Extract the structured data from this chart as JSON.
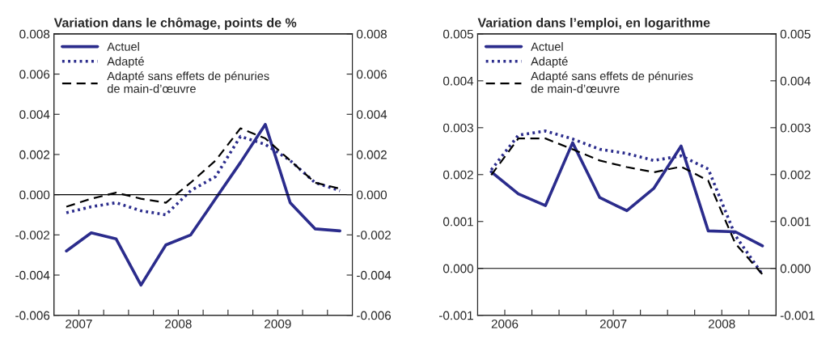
{
  "chart_data": [
    {
      "type": "line",
      "title": "Variation dans le chômage, points de %",
      "x": [
        2006.875,
        2007.125,
        2007.375,
        2007.625,
        2007.875,
        2008.125,
        2008.375,
        2008.625,
        2008.875,
        2009.125,
        2009.375,
        2009.625
      ],
      "series": [
        {
          "name": "Actuel",
          "color": "#2b2c8c",
          "line_style": "solid",
          "values": [
            -0.0028,
            -0.0019,
            -0.0022,
            -0.0045,
            -0.0025,
            -0.002,
            -0.0002,
            0.0016,
            0.0035,
            -0.0004,
            -0.0017,
            -0.0018
          ]
        },
        {
          "name": "Adapté",
          "color": "#2b2c8c",
          "line_style": "dotted",
          "values": [
            -0.0009,
            -0.0006,
            -0.0004,
            -0.0008,
            -0.001,
            0.0002,
            0.0009,
            0.0029,
            0.0025,
            0.0017,
            0.0006,
            0.0002
          ]
        },
        {
          "name": "Adapté sans effets de pénuries\nde main-d’œuvre",
          "color": "#000000",
          "line_style": "dashed",
          "values": [
            -0.0006,
            -0.0002,
            0.0001,
            -0.0002,
            -0.0004,
            0.0006,
            0.0017,
            0.0033,
            0.0028,
            0.0017,
            0.0006,
            0.0003
          ]
        }
      ],
      "xlim": [
        2006.75,
        2009.75
      ],
      "xticks": [
        {
          "value": 2007,
          "label": "2007"
        },
        {
          "value": 2007.25,
          "label": null
        },
        {
          "value": 2007.5,
          "label": null
        },
        {
          "value": 2007.75,
          "label": null
        },
        {
          "value": 2008,
          "label": "2008"
        },
        {
          "value": 2008.25,
          "label": null
        },
        {
          "value": 2008.5,
          "label": null
        },
        {
          "value": 2008.75,
          "label": null
        },
        {
          "value": 2009,
          "label": "2009"
        },
        {
          "value": 2009.25,
          "label": null
        },
        {
          "value": 2009.5,
          "label": null
        }
      ],
      "ylim": [
        -0.006,
        0.008
      ],
      "yticks": [
        {
          "value": -0.006,
          "label": "-0.006"
        },
        {
          "value": -0.004,
          "label": "-0.004"
        },
        {
          "value": -0.002,
          "label": "-0.002"
        },
        {
          "value": 0,
          "label": "0.000"
        },
        {
          "value": 0.002,
          "label": "0.002"
        },
        {
          "value": 0.004,
          "label": "0.004"
        },
        {
          "value": 0.006,
          "label": "0.006"
        },
        {
          "value": 0.008,
          "label": "0.008"
        }
      ],
      "y2lim": [
        -0.006,
        0.008
      ],
      "y2ticks": [
        {
          "value": -0.006,
          "label": "-0.006"
        },
        {
          "value": -0.004,
          "label": "-0.004"
        },
        {
          "value": -0.002,
          "label": "-0.002"
        },
        {
          "value": 0,
          "label": "0.000"
        },
        {
          "value": 0.002,
          "label": "0.002"
        },
        {
          "value": 0.004,
          "label": "0.004"
        },
        {
          "value": 0.006,
          "label": "0.006"
        },
        {
          "value": 0.008,
          "label": "0.008"
        }
      ],
      "ref_lines": [
        {
          "axis": "y",
          "value": 0,
          "color": "#000000",
          "line_style": "solid"
        }
      ],
      "legend": "top left",
      "grid": false
    },
    {
      "type": "line",
      "title": "Variation dans l’emploi, en logarithme",
      "x": [
        2005.875,
        2006.125,
        2006.375,
        2006.625,
        2006.875,
        2007.125,
        2007.375,
        2007.625,
        2007.875,
        2008.125,
        2008.375
      ],
      "series": [
        {
          "name": "Actuel",
          "color": "#2b2c8c",
          "line_style": "solid",
          "values": [
            0.00206,
            0.00159,
            0.00134,
            0.00268,
            0.00151,
            0.00123,
            0.00171,
            0.00261,
            0.0008,
            0.00078,
            0.00048
          ]
        },
        {
          "name": "Adapté",
          "color": "#2b2c8c",
          "line_style": "dotted",
          "values": [
            0.0021,
            0.00284,
            0.00293,
            0.00276,
            0.00254,
            0.00245,
            0.0023,
            0.0024,
            0.00212,
            0.0007,
            -0.00013
          ]
        },
        {
          "name": "Adapté sans effets de pénuries\nde main-d’œuvre",
          "color": "#000000",
          "line_style": "dashed",
          "values": [
            0.00199,
            0.00277,
            0.00277,
            0.00254,
            0.0023,
            0.00216,
            0.00205,
            0.00217,
            0.00187,
            0.00053,
            -0.00013
          ]
        }
      ],
      "xlim": [
        2005.75,
        2008.5
      ],
      "xticks": [
        {
          "value": 2006,
          "label": "2006"
        },
        {
          "value": 2006.25,
          "label": null
        },
        {
          "value": 2006.5,
          "label": null
        },
        {
          "value": 2006.75,
          "label": null
        },
        {
          "value": 2007,
          "label": "2007"
        },
        {
          "value": 2007.25,
          "label": null
        },
        {
          "value": 2007.5,
          "label": null
        },
        {
          "value": 2007.75,
          "label": null
        },
        {
          "value": 2008,
          "label": "2008"
        },
        {
          "value": 2008.25,
          "label": null
        }
      ],
      "ylim": [
        -0.001,
        0.005
      ],
      "yticks": [
        {
          "value": -0.001,
          "label": "-0.001"
        },
        {
          "value": 0,
          "label": "0.000"
        },
        {
          "value": 0.001,
          "label": "0.001"
        },
        {
          "value": 0.002,
          "label": "0.002"
        },
        {
          "value": 0.003,
          "label": "0.003"
        },
        {
          "value": 0.004,
          "label": "0.004"
        },
        {
          "value": 0.005,
          "label": "0.005"
        }
      ],
      "y2lim": [
        -0.001,
        0.005
      ],
      "y2ticks": [
        {
          "value": -0.001,
          "label": "-0.001"
        },
        {
          "value": 0,
          "label": "0.000"
        },
        {
          "value": 0.001,
          "label": "0.001"
        },
        {
          "value": 0.002,
          "label": "0.002"
        },
        {
          "value": 0.003,
          "label": "0.003"
        },
        {
          "value": 0.004,
          "label": "0.004"
        },
        {
          "value": 0.005,
          "label": "0.005"
        }
      ],
      "ref_lines": [
        {
          "axis": "y",
          "value": 0,
          "color": "#000000",
          "line_style": "solid"
        }
      ],
      "legend": "top left",
      "grid": false
    }
  ]
}
